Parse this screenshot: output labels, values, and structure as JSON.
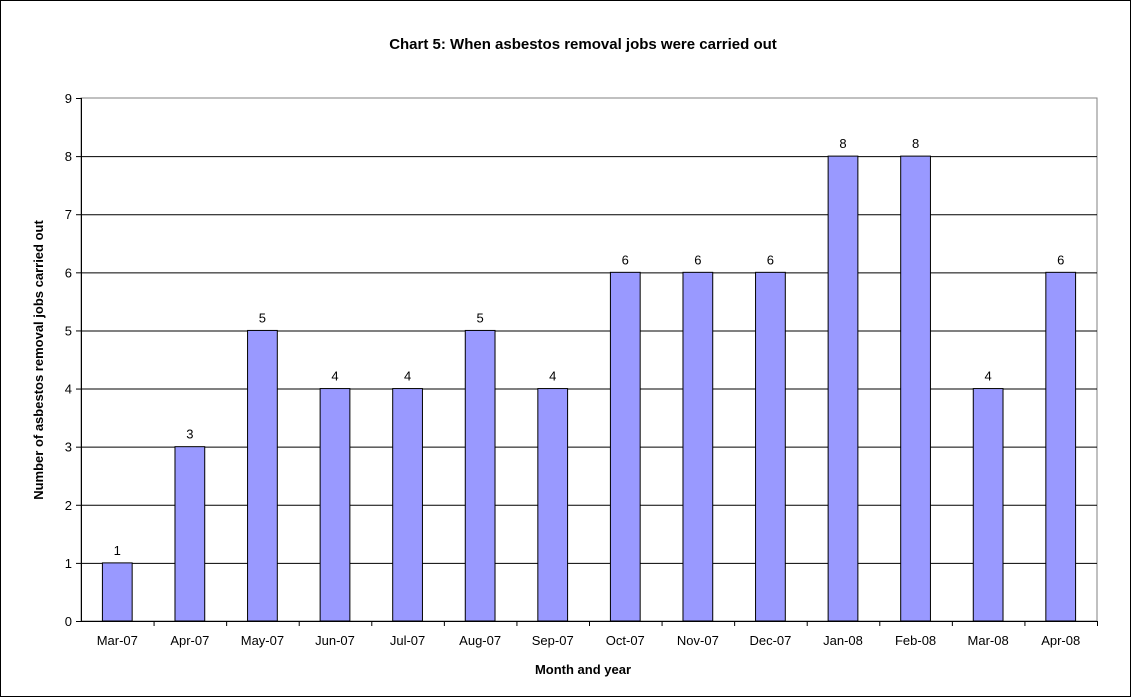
{
  "colors": {
    "bar_fill": "#9999ff",
    "bar_stroke": "#000000",
    "gridline": "#000000",
    "plot_border": "#808080",
    "background": "#ffffff"
  },
  "chart_data": {
    "type": "bar",
    "title": "Chart 5: When asbestos removal jobs were carried out",
    "xlabel": "Month and year",
    "ylabel": "Number of asbestos removal jobs carried out",
    "categories": [
      "Mar-07",
      "Apr-07",
      "May-07",
      "Jun-07",
      "Jul-07",
      "Aug-07",
      "Sep-07",
      "Oct-07",
      "Nov-07",
      "Dec-07",
      "Jan-08",
      "Feb-08",
      "Mar-08",
      "Apr-08"
    ],
    "values": [
      1,
      3,
      5,
      4,
      4,
      5,
      4,
      6,
      6,
      6,
      8,
      8,
      4,
      6
    ],
    "data_labels": [
      "1",
      "3",
      "5",
      "4",
      "4",
      "5",
      "4",
      "6",
      "6",
      "6",
      "8",
      "8",
      "4",
      "6"
    ],
    "ylim": [
      0,
      9
    ],
    "yticks": [
      "0",
      "1",
      "2",
      "3",
      "4",
      "5",
      "6",
      "7",
      "8",
      "9"
    ],
    "grid": true,
    "legend": "none"
  }
}
